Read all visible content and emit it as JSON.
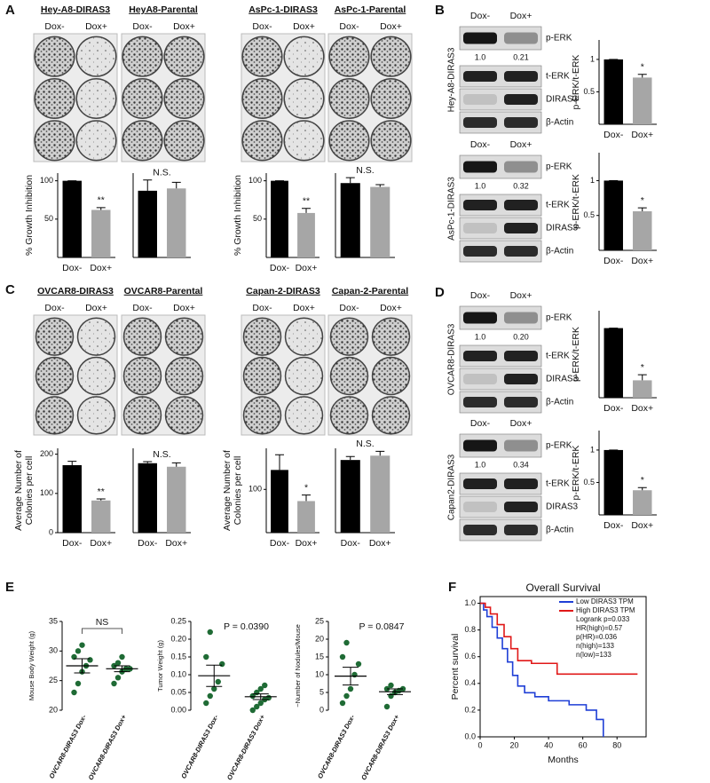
{
  "panel_labels": [
    "A",
    "B",
    "C",
    "D",
    "E",
    "F"
  ],
  "plates": [
    {
      "title": "Hey-A8-DIRAS3",
      "columns": [
        "Dox-",
        "Dox+"
      ]
    },
    {
      "title": "HeyA8-Parental",
      "columns": [
        "Dox-",
        "Dox+"
      ]
    },
    {
      "title": "AsPc-1-DIRAS3",
      "columns": [
        "Dox-",
        "Dox+"
      ]
    },
    {
      "title": "AsPc-1-Parental",
      "columns": [
        "Dox-",
        "Dox+"
      ]
    },
    {
      "title": "OVCAR8-DIRAS3",
      "columns": [
        "Dox-",
        "Dox+"
      ]
    },
    {
      "title": "OVCAR8-Parental",
      "columns": [
        "Dox-",
        "Dox+"
      ]
    },
    {
      "title": "Capan-2-DIRAS3",
      "columns": [
        "Dox-",
        "Dox+"
      ]
    },
    {
      "title": "Capan-2-Parental",
      "columns": [
        "Dox-",
        "Dox+"
      ]
    }
  ],
  "blots": [
    {
      "cell_line": "Hey-A8-DIRAS3",
      "columns": [
        "Dox-",
        "Dox+"
      ],
      "rows": [
        "p-ERK",
        "t-ERK",
        "DIRAS3",
        "β-Actin"
      ],
      "ratios": [
        "1.0",
        "0.21"
      ]
    },
    {
      "cell_line": "AsPc-1-DIRAS3",
      "columns": [
        "Dox-",
        "Dox+"
      ],
      "rows": [
        "p-ERK",
        "t-ERK",
        "DIRAS3",
        "β-Actin"
      ],
      "ratios": [
        "1.0",
        "0.32"
      ]
    },
    {
      "cell_line": "OVCAR8-DIRAS3",
      "columns": [
        "Dox-",
        "Dox+"
      ],
      "rows": [
        "p-ERK",
        "t-ERK",
        "DIRAS3",
        "β-Actin"
      ],
      "ratios": [
        "1.0",
        "0.20"
      ]
    },
    {
      "cell_line": "Capan2-DIRAS3",
      "columns": [
        "Dox-",
        "Dox+"
      ],
      "rows": [
        "p-ERK",
        "t-ERK",
        "DIRAS3",
        "β-Actin"
      ],
      "ratios": [
        "1.0",
        "0.34"
      ]
    }
  ],
  "chart_data": [
    {
      "type": "bar",
      "ylabel": [
        "% Growth Inhibition"
      ],
      "categories": [
        "Dox-",
        "Dox+"
      ],
      "values": [
        100,
        62
      ],
      "errors": [
        0,
        3
      ],
      "colors": [
        "#000000",
        "#a6a6a6"
      ],
      "ylim": [
        0,
        110
      ],
      "yticks": [
        50,
        100
      ],
      "annotation": "**"
    },
    {
      "type": "bar",
      "categories": [
        null,
        null
      ],
      "values": [
        87,
        90
      ],
      "errors": [
        14,
        8
      ],
      "colors": [
        "#000000",
        "#a6a6a6"
      ],
      "ylim": [
        0,
        110
      ],
      "annotation": "N.S."
    },
    {
      "type": "bar",
      "ylabel": [
        "% Growth Inhibition"
      ],
      "categories": [
        "Dox-",
        "Dox+"
      ],
      "values": [
        100,
        58
      ],
      "errors": [
        0,
        6
      ],
      "colors": [
        "#000000",
        "#a6a6a6"
      ],
      "ylim": [
        0,
        110
      ],
      "yticks": [
        50,
        100
      ],
      "annotation": "**"
    },
    {
      "type": "bar",
      "categories": [
        null,
        null
      ],
      "values": [
        97,
        92
      ],
      "errors": [
        7,
        3
      ],
      "colors": [
        "#000000",
        "#a6a6a6"
      ],
      "ylim": [
        0,
        110
      ],
      "annotation": "N.S."
    },
    {
      "type": "bar",
      "ylabel": [
        "p-ERK/t-ERK"
      ],
      "categories": [
        "Dox-",
        "Dox+"
      ],
      "values": [
        1.0,
        0.72
      ],
      "errors": [
        0,
        0.05
      ],
      "colors": [
        "#000000",
        "#a6a6a6"
      ],
      "ylim": [
        0,
        1.3
      ],
      "yticks": [
        0.5,
        1
      ],
      "annotation": "*"
    },
    {
      "type": "bar",
      "ylabel": [
        "p-ERK/t-ERK"
      ],
      "categories": [
        "Dox-",
        "Dox+"
      ],
      "values": [
        1.0,
        0.56
      ],
      "errors": [
        0,
        0.05
      ],
      "colors": [
        "#000000",
        "#a6a6a6"
      ],
      "ylim": [
        0,
        1.4
      ],
      "yticks": [
        0.5,
        1
      ],
      "annotation": "*"
    },
    {
      "type": "bar",
      "ylabel": [
        "Average Number of",
        "Colonies per cell"
      ],
      "categories": [
        "Dox-",
        "Dox+"
      ],
      "values": [
        172,
        82
      ],
      "errors": [
        10,
        4
      ],
      "colors": [
        "#000000",
        "#a6a6a6"
      ],
      "ylim": [
        0,
        215
      ],
      "yticks": [
        0,
        100,
        200
      ],
      "annotation": "**"
    },
    {
      "type": "bar",
      "categories": [
        "Dox-",
        "Dox+"
      ],
      "values": [
        177,
        168
      ],
      "errors": [
        4,
        10
      ],
      "colors": [
        "#000000",
        "#a6a6a6"
      ],
      "ylim": [
        0,
        215
      ],
      "annotation": "N.S."
    },
    {
      "type": "bar",
      "ylabel": [
        "Average Number of",
        "Colonies per cell"
      ],
      "categories": [
        "Dox-",
        "Dox+"
      ],
      "values": [
        145,
        73
      ],
      "errors": [
        35,
        14
      ],
      "colors": [
        "#000000",
        "#a6a6a6"
      ],
      "ylim": [
        0,
        195
      ],
      "yticks": [
        100
      ],
      "annotation": "*"
    },
    {
      "type": "bar",
      "categories": [
        "Dox-",
        "Dox+"
      ],
      "values": [
        168,
        178
      ],
      "errors": [
        8,
        10
      ],
      "colors": [
        "#000000",
        "#a6a6a6"
      ],
      "ylim": [
        0,
        195
      ],
      "annotation": "N.S."
    },
    {
      "type": "bar",
      "ylabel": [
        "p-ERK/t-ERK"
      ],
      "categories": [
        "Dox-",
        "Dox+"
      ],
      "values": [
        1.0,
        0.25
      ],
      "errors": [
        0,
        0.08
      ],
      "colors": [
        "#000000",
        "#a6a6a6"
      ],
      "ylim": [
        0,
        1.25
      ],
      "annotation": "*"
    },
    {
      "type": "bar",
      "ylabel": [
        "p-ERK/t-ERK"
      ],
      "categories": [
        "Dox-",
        "Dox+"
      ],
      "values": [
        1.0,
        0.38
      ],
      "errors": [
        0,
        0.04
      ],
      "colors": [
        "#000000",
        "#a6a6a6"
      ],
      "ylim": [
        0,
        1.3
      ],
      "yticks": [
        0.5,
        1
      ],
      "annotation": "*"
    },
    {
      "type": "strip",
      "ylabel": "Mouse Body Weight (g)",
      "categories": [
        "OVCAR8-DIRAS3 Dox-",
        "OVCAR8-DIRAS3 Dox+"
      ],
      "color": "#1f6b35",
      "groups": [
        {
          "values": [
            23,
            24.5,
            26.5,
            27.5,
            28.5,
            29,
            30,
            31
          ],
          "mean": 27.5,
          "sem": 1.2
        },
        {
          "values": [
            24.5,
            25.5,
            26.5,
            27,
            27,
            27.5,
            28,
            29
          ],
          "mean": 27.0,
          "sem": 0.5
        }
      ],
      "ylim": [
        20,
        35
      ],
      "yticks": [
        20,
        25,
        30,
        35
      ],
      "annotation": "NS",
      "bracket": true
    },
    {
      "type": "strip",
      "ylabel": "Tumor Weight (g)",
      "categories": [
        "OVCAR8-DIRAS3 Dox-",
        "OVCAR8-DIRAS3 Dox+"
      ],
      "color": "#1f6b35",
      "groups": [
        {
          "values": [
            0.02,
            0.04,
            0.06,
            0.08,
            0.13,
            0.15,
            0.22
          ],
          "mean": 0.097,
          "sem": 0.03
        },
        {
          "values": [
            0.0,
            0.01,
            0.02,
            0.03,
            0.035,
            0.04,
            0.05,
            0.06,
            0.07
          ],
          "mean": 0.038,
          "sem": 0.008
        }
      ],
      "ylim": [
        0,
        0.25
      ],
      "yticks": [
        {
          "value": 0,
          "label": "0.00"
        },
        {
          "value": 0.05,
          "label": "0.05"
        },
        {
          "value": 0.1,
          "label": "0.10"
        },
        {
          "value": 0.15,
          "label": "0.15"
        },
        {
          "value": 0.2,
          "label": "0.20"
        },
        {
          "value": 0.25,
          "label": "0.25"
        }
      ],
      "annotation": "P = 0.0390"
    },
    {
      "type": "strip",
      "ylabel": "~Number of Nodules/Mouse",
      "categories": [
        "OVCAR8-DIRAS3 Dox-",
        "OVCAR8-DIRAS3 Dox+"
      ],
      "color": "#1f6b35",
      "groups": [
        {
          "values": [
            2,
            4,
            6,
            10,
            13,
            15,
            19
          ],
          "mean": 9.6,
          "sem": 2.5
        },
        {
          "values": [
            1,
            4,
            5,
            5.5,
            6,
            6,
            7
          ],
          "mean": 5.2,
          "sem": 0.8
        }
      ],
      "ylim": [
        0,
        25
      ],
      "yticks": [
        0,
        5,
        10,
        15,
        20,
        25
      ],
      "annotation": "P = 0.0847"
    },
    {
      "type": "line",
      "title": "Overall Survival",
      "xlabel": "Months",
      "ylabel": "Percent survival",
      "legend": "upper right",
      "series": [
        {
          "name": "Low DIRAS3 TPM",
          "color": "#1f3fd6",
          "x": [
            0,
            2,
            2,
            4,
            4,
            7,
            7,
            10,
            10,
            13,
            13,
            16,
            16,
            19,
            19,
            22,
            22,
            26,
            26,
            32,
            32,
            40,
            40,
            52,
            52,
            62,
            62,
            68,
            68,
            72,
            72
          ],
          "values": [
            1,
            1,
            0.95,
            0.95,
            0.9,
            0.9,
            0.82,
            0.82,
            0.74,
            0.74,
            0.66,
            0.66,
            0.56,
            0.56,
            0.46,
            0.46,
            0.38,
            0.38,
            0.33,
            0.33,
            0.3,
            0.3,
            0.27,
            0.27,
            0.24,
            0.24,
            0.2,
            0.2,
            0.13,
            0.13,
            0.0
          ]
        },
        {
          "name": "High DIRAS3 TPM",
          "color": "#e01818",
          "x": [
            0,
            3,
            3,
            6,
            6,
            10,
            10,
            14,
            14,
            18,
            18,
            22,
            22,
            30,
            30,
            45,
            45,
            92
          ],
          "values": [
            1,
            1,
            0.97,
            0.97,
            0.92,
            0.92,
            0.84,
            0.84,
            0.75,
            0.75,
            0.66,
            0.66,
            0.57,
            0.57,
            0.55,
            0.55,
            0.47,
            0.47
          ]
        }
      ],
      "annotations": [
        "Logrank p=0.033",
        "HR(high)=0.57",
        "p(HR)=0.036",
        "n(high)=133",
        "n(low)=133"
      ],
      "xlim": [
        0,
        97
      ],
      "ylim": [
        0,
        1.05
      ],
      "xticks": [
        0,
        20,
        40,
        60,
        80
      ],
      "yticks": [
        {
          "value": 0,
          "label": "0.0"
        },
        {
          "value": 0.2,
          "label": "0.2"
        },
        {
          "value": 0.4,
          "label": "0.4"
        },
        {
          "value": 0.6,
          "label": "0.6"
        },
        {
          "value": 0.8,
          "label": "0.8"
        },
        {
          "value": 1,
          "label": "1.0"
        }
      ]
    }
  ]
}
